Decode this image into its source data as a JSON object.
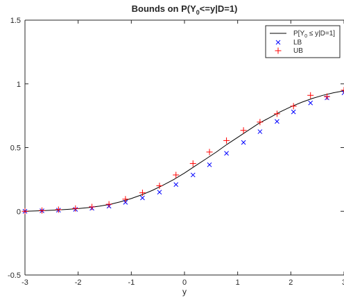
{
  "chart_data": {
    "type": "line",
    "title": "Bounds on P(Y",
    "title_sub": "0",
    "title_rest": "<=y|D=1)",
    "xlabel": "y",
    "ylabel": "",
    "xlim": [
      -3,
      3
    ],
    "ylim": [
      -0.5,
      1.5
    ],
    "xticks": [
      -3,
      -2,
      -1,
      0,
      1,
      2,
      3
    ],
    "xtick_labels": [
      "-3",
      "-2",
      "-1",
      "0",
      "1",
      "2",
      "3"
    ],
    "yticks": [
      -0.5,
      0,
      0.5,
      1,
      1.5
    ],
    "ytick_labels": [
      "-0.5",
      "0",
      "0.5",
      "1",
      "1.5"
    ],
    "grid": false,
    "legend_position": "top-right",
    "legend": {
      "cdf_label_pre": "P[Y",
      "cdf_label_sub": "0",
      "cdf_label_post": " ≤ y|D=1]",
      "lb_label": "LB",
      "ub_label": "UB"
    },
    "colors": {
      "cdf": "#000000",
      "lb": "#0000ff",
      "ub": "#ff0000",
      "axes": "#262626"
    },
    "series": [
      {
        "name": "P[Y0 ≤ y|D=1]",
        "style": "line",
        "x": [
          -3.0,
          -2.8,
          -2.6,
          -2.4,
          -2.2,
          -2.0,
          -1.8,
          -1.6,
          -1.4,
          -1.2,
          -1.0,
          -0.8,
          -0.6,
          -0.4,
          -0.2,
          0.0,
          0.2,
          0.4,
          0.6,
          0.8,
          1.0,
          1.2,
          1.4,
          1.6,
          1.8,
          2.0,
          2.2,
          2.4,
          2.6,
          2.8,
          3.0
        ],
        "y": [
          0.0,
          0.003,
          0.006,
          0.01,
          0.015,
          0.021,
          0.029,
          0.04,
          0.055,
          0.075,
          0.1,
          0.13,
          0.165,
          0.205,
          0.25,
          0.3,
          0.355,
          0.41,
          0.465,
          0.525,
          0.58,
          0.635,
          0.69,
          0.735,
          0.78,
          0.82,
          0.855,
          0.885,
          0.91,
          0.93,
          0.945
        ]
      },
      {
        "name": "LB",
        "style": "x",
        "x": [
          -3.0,
          -2.68,
          -2.37,
          -2.05,
          -1.74,
          -1.42,
          -1.11,
          -0.79,
          -0.47,
          -0.16,
          0.16,
          0.47,
          0.79,
          1.11,
          1.42,
          1.74,
          2.05,
          2.37,
          2.68,
          3.0
        ],
        "y": [
          0.0,
          0.004,
          0.009,
          0.015,
          0.024,
          0.04,
          0.07,
          0.105,
          0.15,
          0.21,
          0.285,
          0.365,
          0.455,
          0.54,
          0.625,
          0.705,
          0.78,
          0.85,
          0.89,
          0.93
        ]
      },
      {
        "name": "UB",
        "style": "+",
        "x": [
          -3.0,
          -2.68,
          -2.37,
          -2.05,
          -1.74,
          -1.42,
          -1.11,
          -0.79,
          -0.47,
          -0.16,
          0.16,
          0.47,
          0.79,
          1.11,
          1.42,
          1.74,
          2.05,
          2.37,
          2.68,
          3.0
        ],
        "y": [
          0.0,
          0.006,
          0.013,
          0.022,
          0.034,
          0.055,
          0.095,
          0.145,
          0.2,
          0.285,
          0.375,
          0.465,
          0.555,
          0.635,
          0.7,
          0.765,
          0.825,
          0.91,
          0.9,
          0.95
        ]
      }
    ]
  }
}
